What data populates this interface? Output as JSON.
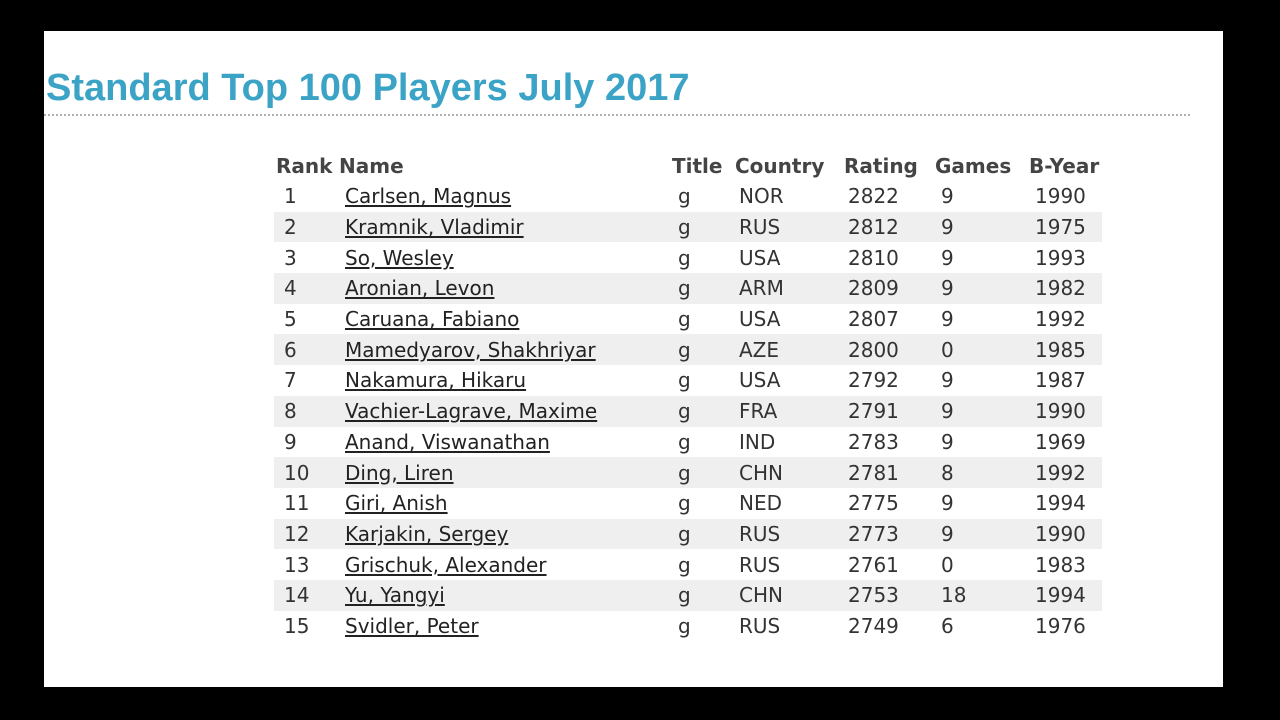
{
  "title": "Standard Top 100 Players July 2017",
  "colors": {
    "title": "#3ba3c6",
    "stripe": "#efefef",
    "background": "#000000"
  },
  "table": {
    "headers": {
      "rank": "Rank",
      "name": "Name",
      "title": "Title",
      "country": "Country",
      "rating": "Rating",
      "games": "Games",
      "byear": "B-Year"
    },
    "rows": [
      {
        "rank": "1",
        "name": "Carlsen, Magnus",
        "title": "g",
        "country": "NOR",
        "rating": "2822",
        "games": "9",
        "byear": "1990"
      },
      {
        "rank": "2",
        "name": "Kramnik, Vladimir",
        "title": "g",
        "country": "RUS",
        "rating": "2812",
        "games": "9",
        "byear": "1975"
      },
      {
        "rank": "3",
        "name": "So, Wesley",
        "title": "g",
        "country": "USA",
        "rating": "2810",
        "games": "9",
        "byear": "1993"
      },
      {
        "rank": "4",
        "name": "Aronian, Levon",
        "title": "g",
        "country": "ARM",
        "rating": "2809",
        "games": "9",
        "byear": "1982"
      },
      {
        "rank": "5",
        "name": "Caruana, Fabiano",
        "title": "g",
        "country": "USA",
        "rating": "2807",
        "games": "9",
        "byear": "1992"
      },
      {
        "rank": "6",
        "name": "Mamedyarov, Shakhriyar",
        "title": "g",
        "country": "AZE",
        "rating": "2800",
        "games": "0",
        "byear": "1985"
      },
      {
        "rank": "7",
        "name": "Nakamura, Hikaru",
        "title": "g",
        "country": "USA",
        "rating": "2792",
        "games": "9",
        "byear": "1987"
      },
      {
        "rank": "8",
        "name": "Vachier-Lagrave, Maxime",
        "title": "g",
        "country": "FRA",
        "rating": "2791",
        "games": "9",
        "byear": "1990"
      },
      {
        "rank": "9",
        "name": "Anand, Viswanathan",
        "title": "g",
        "country": "IND",
        "rating": "2783",
        "games": "9",
        "byear": "1969"
      },
      {
        "rank": "10",
        "name": "Ding, Liren",
        "title": "g",
        "country": "CHN",
        "rating": "2781",
        "games": "8",
        "byear": "1992"
      },
      {
        "rank": "11",
        "name": "Giri, Anish",
        "title": "g",
        "country": "NED",
        "rating": "2775",
        "games": "9",
        "byear": "1994"
      },
      {
        "rank": "12",
        "name": "Karjakin, Sergey",
        "title": "g",
        "country": "RUS",
        "rating": "2773",
        "games": "9",
        "byear": "1990"
      },
      {
        "rank": "13",
        "name": "Grischuk, Alexander",
        "title": "g",
        "country": "RUS",
        "rating": "2761",
        "games": "0",
        "byear": "1983"
      },
      {
        "rank": "14",
        "name": "Yu, Yangyi",
        "title": "g",
        "country": "CHN",
        "rating": "2753",
        "games": "18",
        "byear": "1994"
      },
      {
        "rank": "15",
        "name": "Svidler, Peter",
        "title": "g",
        "country": "RUS",
        "rating": "2749",
        "games": "6",
        "byear": "1976"
      }
    ]
  }
}
